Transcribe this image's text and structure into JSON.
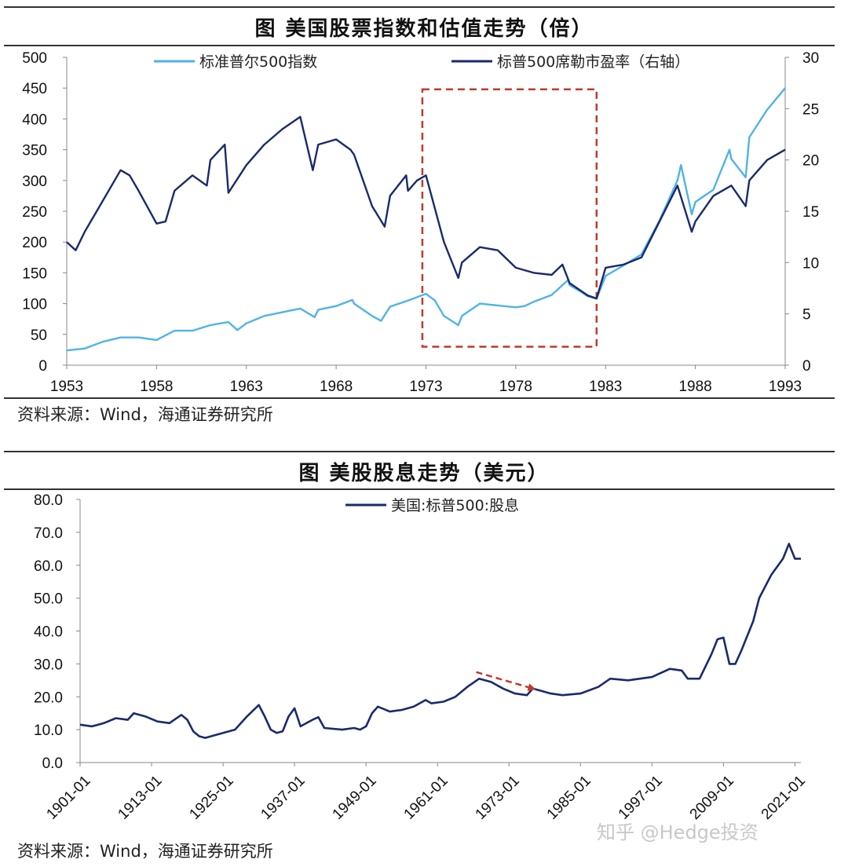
{
  "figure1": {
    "title": "图  美国股票指数和估值走势（倍）",
    "source": "资料来源：Wind，海通证券研究所"
  },
  "figure2": {
    "title": "图  美股股息走势（美元）",
    "source": "资料来源：Wind，海通证券研究所"
  },
  "watermark": "知乎 @Hedge投资",
  "colors": {
    "light_blue": "#4fb3e8",
    "navy": "#1a2a6c",
    "highlight_red": "#c0392b"
  },
  "chart_data": [
    {
      "type": "line",
      "title": "图  美国股票指数和估值走势（倍）",
      "x_ticks": [
        "1953",
        "1958",
        "1963",
        "1968",
        "1973",
        "1978",
        "1983",
        "1988",
        "1993"
      ],
      "xlim": [
        1953,
        1993
      ],
      "y_left": {
        "ticks": [
          "0",
          "50",
          "100",
          "150",
          "200",
          "250",
          "300",
          "350",
          "400",
          "450",
          "500"
        ],
        "lim": [
          0,
          500
        ]
      },
      "y_right": {
        "ticks": [
          "0",
          "5",
          "10",
          "15",
          "20",
          "25",
          "30"
        ],
        "lim": [
          0,
          30
        ]
      },
      "highlight_region": {
        "x": [
          1972.8,
          1982.5
        ],
        "y_left": [
          30,
          448
        ],
        "style": "red dashed box"
      },
      "series": [
        {
          "name": "标准普尔500指数",
          "axis": "left",
          "color": "#4fb3e8",
          "points": [
            [
              1953,
              24
            ],
            [
              1954,
              27
            ],
            [
              1955,
              38
            ],
            [
              1956,
              45
            ],
            [
              1957,
              45
            ],
            [
              1958,
              41
            ],
            [
              1959,
              56
            ],
            [
              1960,
              56
            ],
            [
              1961,
              65
            ],
            [
              1962,
              70
            ],
            [
              1962.5,
              57
            ],
            [
              1963,
              68
            ],
            [
              1964,
              80
            ],
            [
              1965,
              86
            ],
            [
              1966,
              92
            ],
            [
              1966.8,
              78
            ],
            [
              1967,
              90
            ],
            [
              1968,
              96
            ],
            [
              1968.9,
              106
            ],
            [
              1969,
              100
            ],
            [
              1970,
              80
            ],
            [
              1970.5,
              72
            ],
            [
              1971,
              95
            ],
            [
              1972,
              105
            ],
            [
              1973,
              116
            ],
            [
              1973.5,
              105
            ],
            [
              1974,
              80
            ],
            [
              1974.8,
              65
            ],
            [
              1975,
              80
            ],
            [
              1976,
              100
            ],
            [
              1977,
              97
            ],
            [
              1978,
              94
            ],
            [
              1978.5,
              96
            ],
            [
              1979,
              103
            ],
            [
              1980,
              114
            ],
            [
              1980.9,
              138
            ],
            [
              1981,
              130
            ],
            [
              1981.7,
              118
            ],
            [
              1982,
              112
            ],
            [
              1982.5,
              108
            ],
            [
              1983,
              145
            ],
            [
              1984,
              162
            ],
            [
              1985,
              180
            ],
            [
              1986,
              235
            ],
            [
              1987,
              300
            ],
            [
              1987.2,
              325
            ],
            [
              1987.8,
              245
            ],
            [
              1988,
              265
            ],
            [
              1989,
              285
            ],
            [
              1989.9,
              350
            ],
            [
              1990,
              335
            ],
            [
              1990.8,
              305
            ],
            [
              1991,
              370
            ],
            [
              1992,
              415
            ],
            [
              1993,
              450
            ]
          ]
        },
        {
          "name": "标普500席勒市盈率（右轴）",
          "axis": "right",
          "color": "#1a2a6c",
          "points": [
            [
              1953,
              12
            ],
            [
              1953.5,
              11.2
            ],
            [
              1954,
              13
            ],
            [
              1955,
              16
            ],
            [
              1956,
              19
            ],
            [
              1956.5,
              18.5
            ],
            [
              1957,
              17
            ],
            [
              1958,
              13.8
            ],
            [
              1958.5,
              14
            ],
            [
              1959,
              17
            ],
            [
              1960,
              18.5
            ],
            [
              1960.8,
              17.5
            ],
            [
              1961,
              20
            ],
            [
              1961.8,
              21.5
            ],
            [
              1962,
              16.8
            ],
            [
              1963,
              19.5
            ],
            [
              1964,
              21.5
            ],
            [
              1965,
              23
            ],
            [
              1966,
              24.2
            ],
            [
              1966.7,
              19
            ],
            [
              1967,
              21.5
            ],
            [
              1968,
              22
            ],
            [
              1968.8,
              21
            ],
            [
              1969,
              20.5
            ],
            [
              1970,
              15.5
            ],
            [
              1970.7,
              13.5
            ],
            [
              1971,
              16.5
            ],
            [
              1971.9,
              18.5
            ],
            [
              1972,
              17
            ],
            [
              1972.5,
              18
            ],
            [
              1973,
              18.5
            ],
            [
              1974,
              12
            ],
            [
              1974.8,
              8.5
            ],
            [
              1975,
              10
            ],
            [
              1976,
              11.5
            ],
            [
              1977,
              11.2
            ],
            [
              1978,
              9.5
            ],
            [
              1979,
              9
            ],
            [
              1980,
              8.8
            ],
            [
              1980.6,
              9.8
            ],
            [
              1981,
              8
            ],
            [
              1982,
              6.8
            ],
            [
              1982.5,
              6.5
            ],
            [
              1983,
              9.5
            ],
            [
              1984,
              9.8
            ],
            [
              1985,
              10.5
            ],
            [
              1986,
              14
            ],
            [
              1987,
              17.5
            ],
            [
              1987.8,
              13
            ],
            [
              1988,
              14
            ],
            [
              1989,
              16.5
            ],
            [
              1990,
              17.5
            ],
            [
              1990.8,
              15.5
            ],
            [
              1991,
              18
            ],
            [
              1992,
              20
            ],
            [
              1993,
              21
            ]
          ]
        }
      ]
    },
    {
      "type": "line",
      "title": "图  美股股息走势（美元）",
      "x_ticks": [
        "1901-01",
        "1913-01",
        "1925-01",
        "1937-01",
        "1949-01",
        "1961-01",
        "1973-01",
        "1985-01",
        "1997-01",
        "2009-01",
        "2021-01"
      ],
      "xlim": [
        1901,
        2022
      ],
      "y_ticks": [
        "0.0",
        "10.0",
        "20.0",
        "30.0",
        "40.0",
        "50.0",
        "60.0",
        "70.0",
        "80.0"
      ],
      "ylim": [
        0,
        80
      ],
      "annotation": {
        "type": "red dashed arrow",
        "from": [
          1967.5,
          27.5
        ],
        "to": [
          1977,
          22.5
        ]
      },
      "series": [
        {
          "name": "美国:标普500:股息",
          "color": "#1a2a6c",
          "points": [
            [
              1901,
              11.5
            ],
            [
              1903,
              11
            ],
            [
              1905,
              12
            ],
            [
              1907,
              13.5
            ],
            [
              1909,
              13
            ],
            [
              1910,
              15
            ],
            [
              1912,
              14
            ],
            [
              1914,
              12.5
            ],
            [
              1916,
              12
            ],
            [
              1918,
              14.5
            ],
            [
              1919,
              13
            ],
            [
              1920,
              9.5
            ],
            [
              1921,
              8
            ],
            [
              1922,
              7.5
            ],
            [
              1924,
              8.5
            ],
            [
              1927,
              10
            ],
            [
              1929,
              14
            ],
            [
              1931,
              17.5
            ],
            [
              1932,
              14
            ],
            [
              1933,
              10
            ],
            [
              1934,
              9
            ],
            [
              1935,
              9.5
            ],
            [
              1936,
              14
            ],
            [
              1937,
              16.5
            ],
            [
              1938,
              11
            ],
            [
              1940,
              13
            ],
            [
              1941,
              13.8
            ],
            [
              1942,
              10.5
            ],
            [
              1945,
              10
            ],
            [
              1947,
              10.5
            ],
            [
              1948,
              10
            ],
            [
              1949,
              11
            ],
            [
              1950,
              15
            ],
            [
              1951,
              17
            ],
            [
              1953,
              15.5
            ],
            [
              1955,
              16
            ],
            [
              1957,
              17
            ],
            [
              1958,
              18
            ],
            [
              1959,
              19
            ],
            [
              1960,
              18
            ],
            [
              1962,
              18.5
            ],
            [
              1964,
              20
            ],
            [
              1966,
              23
            ],
            [
              1968,
              25.5
            ],
            [
              1970,
              24.5
            ],
            [
              1972,
              22.5
            ],
            [
              1974,
              21
            ],
            [
              1976,
              20.5
            ],
            [
              1977,
              22.5
            ],
            [
              1980,
              21
            ],
            [
              1982,
              20.5
            ],
            [
              1985,
              21
            ],
            [
              1988,
              23
            ],
            [
              1990,
              25.5
            ],
            [
              1993,
              25
            ],
            [
              1995,
              25.5
            ],
            [
              1997,
              26
            ],
            [
              2000,
              28.5
            ],
            [
              2002,
              28
            ],
            [
              2003,
              25.5
            ],
            [
              2005,
              25.5
            ],
            [
              2007,
              33
            ],
            [
              2008,
              37.5
            ],
            [
              2009,
              38
            ],
            [
              2010,
              30
            ],
            [
              2011,
              30
            ],
            [
              2012,
              34
            ],
            [
              2014,
              43
            ],
            [
              2015,
              50
            ],
            [
              2017,
              57
            ],
            [
              2019,
              62
            ],
            [
              2020,
              66.5
            ],
            [
              2021,
              62
            ],
            [
              2022,
              62
            ]
          ]
        }
      ]
    }
  ]
}
